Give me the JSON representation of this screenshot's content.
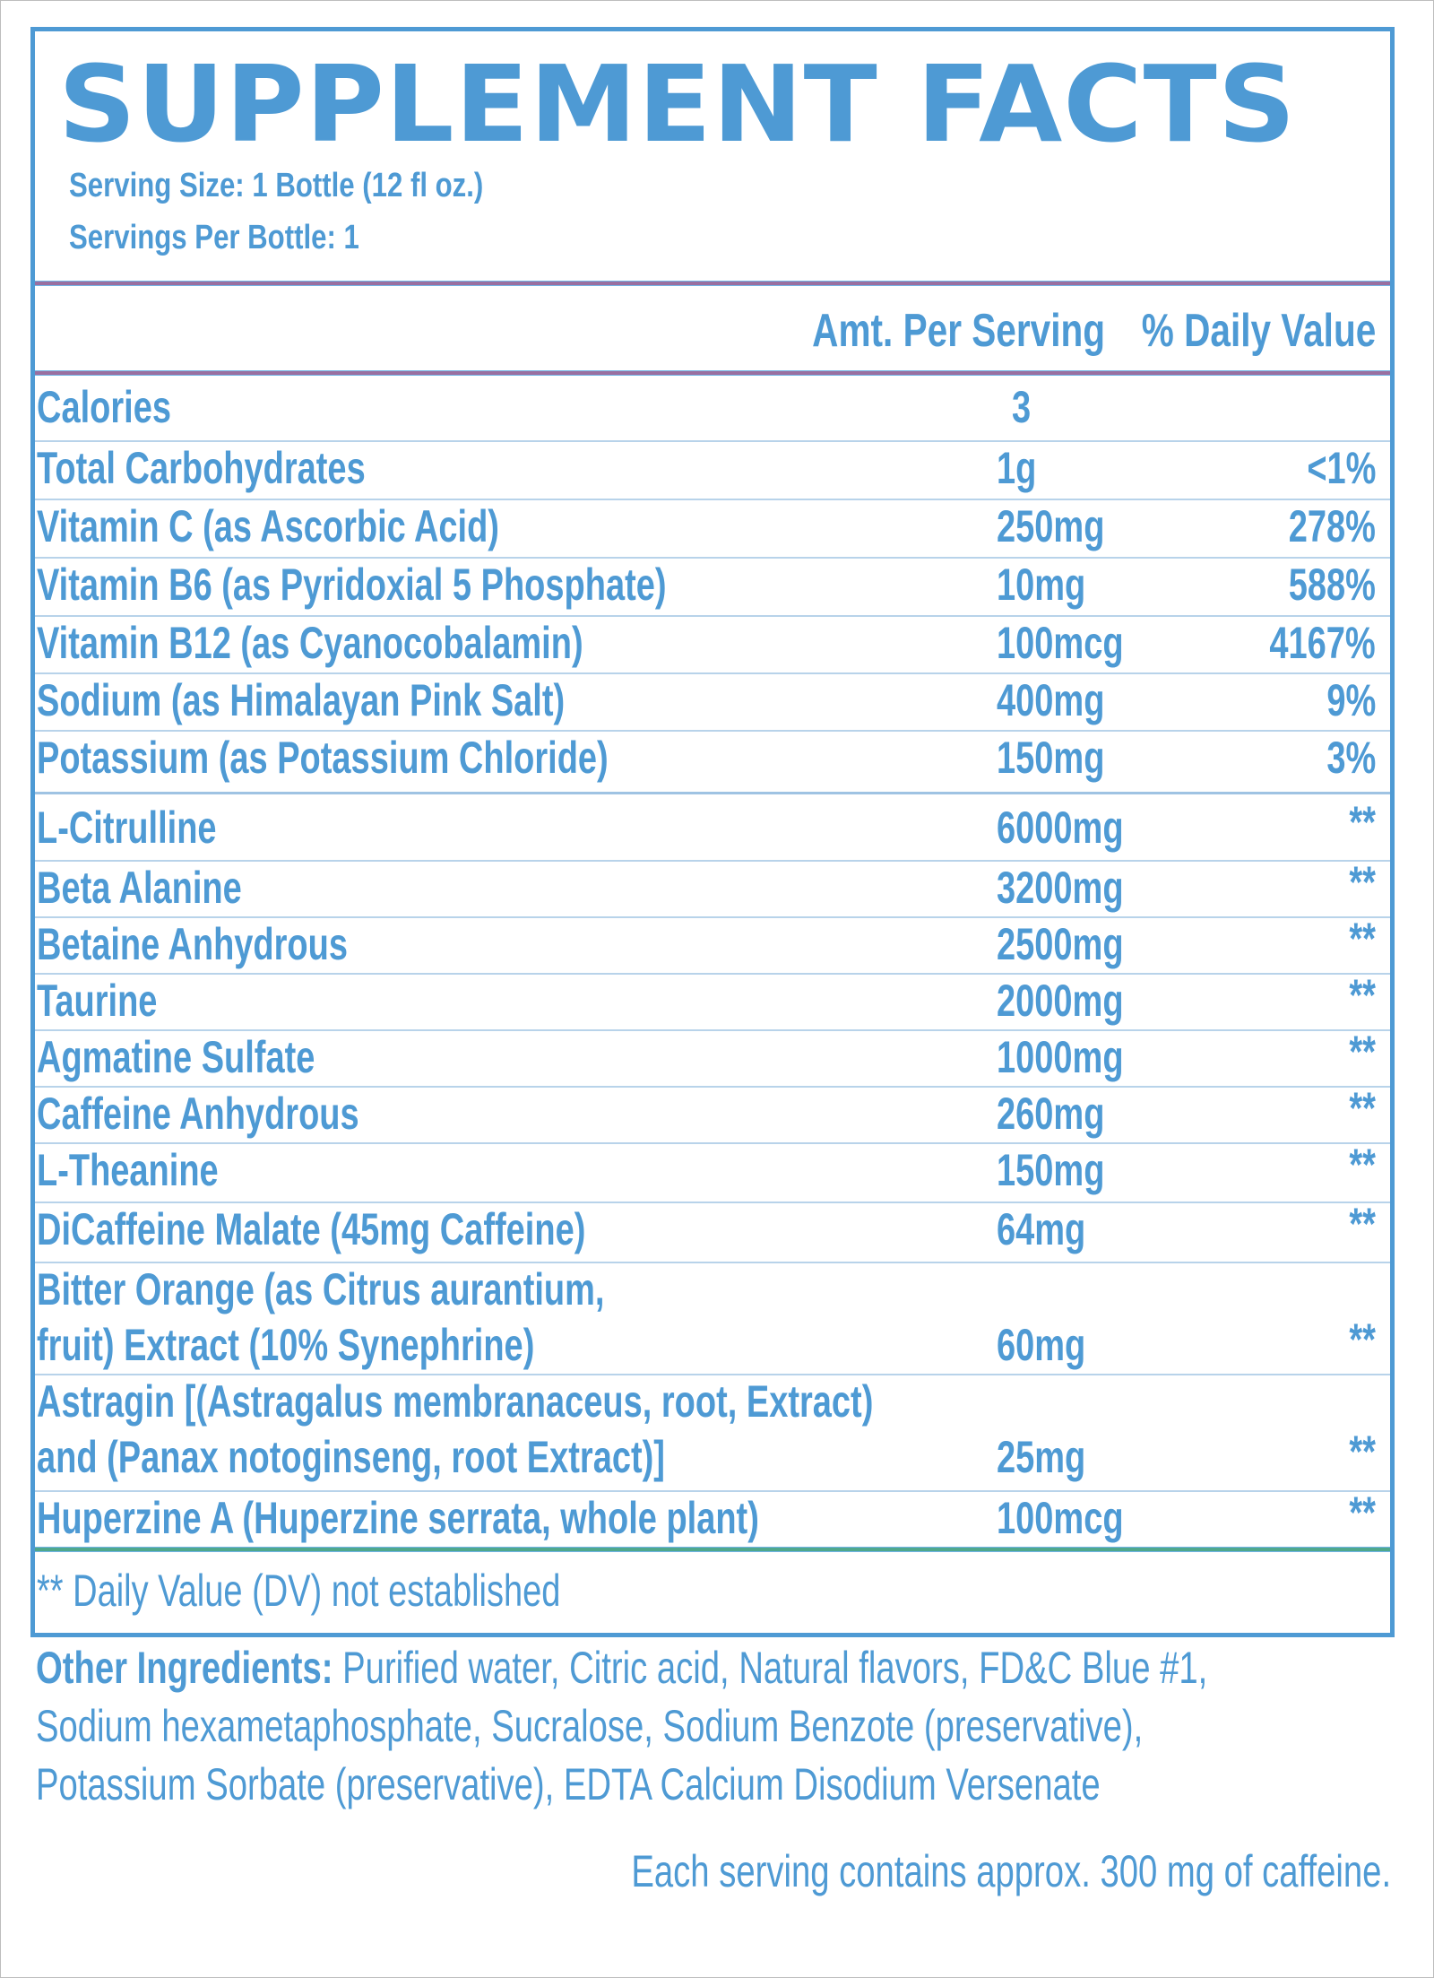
{
  "label": {
    "title": "SUPPLEMENT FACTS",
    "serving_size": "Serving Size: 1 Bottle  (12 fl oz.)",
    "servings_per_container": "Servings Per Bottle: 1",
    "columns": {
      "amount": "Amt. Per Serving",
      "daily_value": "% Daily Value"
    },
    "rows": [
      {
        "name": [
          "Calories"
        ],
        "amount": "3",
        "dv": ""
      },
      {
        "name": [
          "Total Carbohydrates"
        ],
        "amount": "1g",
        "dv": "<1%"
      },
      {
        "name": [
          "Vitamin C (as Ascorbic Acid)"
        ],
        "amount": "250mg",
        "dv": "278%"
      },
      {
        "name": [
          "Vitamin B6 (as Pyridoxial 5 Phosphate)"
        ],
        "amount": "10mg",
        "dv": "588%"
      },
      {
        "name": [
          "Vitamin B12 (as Cyanocobalamin)"
        ],
        "amount": "100mcg",
        "dv": "4167%"
      },
      {
        "name": [
          "Sodium (as Himalayan Pink Salt)"
        ],
        "amount": "400mg",
        "dv": "9%"
      },
      {
        "name": [
          "Potassium (as Potassium Chloride)"
        ],
        "amount": "150mg",
        "dv": "3%"
      },
      {
        "name": [
          "L-Citrulline"
        ],
        "amount": "6000mg",
        "dv": "**"
      },
      {
        "name": [
          "Beta Alanine"
        ],
        "amount": "3200mg",
        "dv": "**"
      },
      {
        "name": [
          "Betaine Anhydrous"
        ],
        "amount": "2500mg",
        "dv": "**"
      },
      {
        "name": [
          "Taurine"
        ],
        "amount": "2000mg",
        "dv": "**"
      },
      {
        "name": [
          "Agmatine Sulfate"
        ],
        "amount": "1000mg",
        "dv": "**"
      },
      {
        "name": [
          "Caffeine Anhydrous"
        ],
        "amount": "260mg",
        "dv": "**"
      },
      {
        "name": [
          "L-Theanine"
        ],
        "amount": "150mg",
        "dv": "**"
      },
      {
        "name": [
          "DiCaffeine Malate (45mg Caffeine)"
        ],
        "amount": "64mg",
        "dv": "**"
      },
      {
        "name": [
          "Bitter Orange (as Citrus aurantium,",
          "fruit) Extract (10% Synephrine)"
        ],
        "amount": "60mg",
        "dv": "**"
      },
      {
        "name": [
          "Astragin [(Astragalus membranaceus, root, Extract)",
          "and (Panax notoginseng, root Extract)]"
        ],
        "amount": "25mg",
        "dv": "**"
      },
      {
        "name": [
          "Huperzine A (Huperzine serrata, whole plant)"
        ],
        "amount": "100mcg",
        "dv": "**"
      }
    ],
    "footnote": "** Daily Value (DV) not established"
  },
  "other_ingredients": {
    "lead": "Other Ingredients:",
    "lines": [
      " Purified water, Citric acid, Natural flavors, FD&C Blue #1,",
      "Sodium hexametaphosphate, Sucralose, Sodium Benzote (preservative),",
      "Potassium Sorbate (preservative), EDTA Calcium Disodium Versenate"
    ]
  },
  "caffeine_note": "Each serving contains approx. 300 mg of caffeine.",
  "colors": {
    "text_blue": "#4e9ad4",
    "border_blue": "#4e9ad4",
    "divider_purple": "#9a6fa0",
    "divider_green": "#4fa88c",
    "row_line": "#b8d3ea"
  }
}
